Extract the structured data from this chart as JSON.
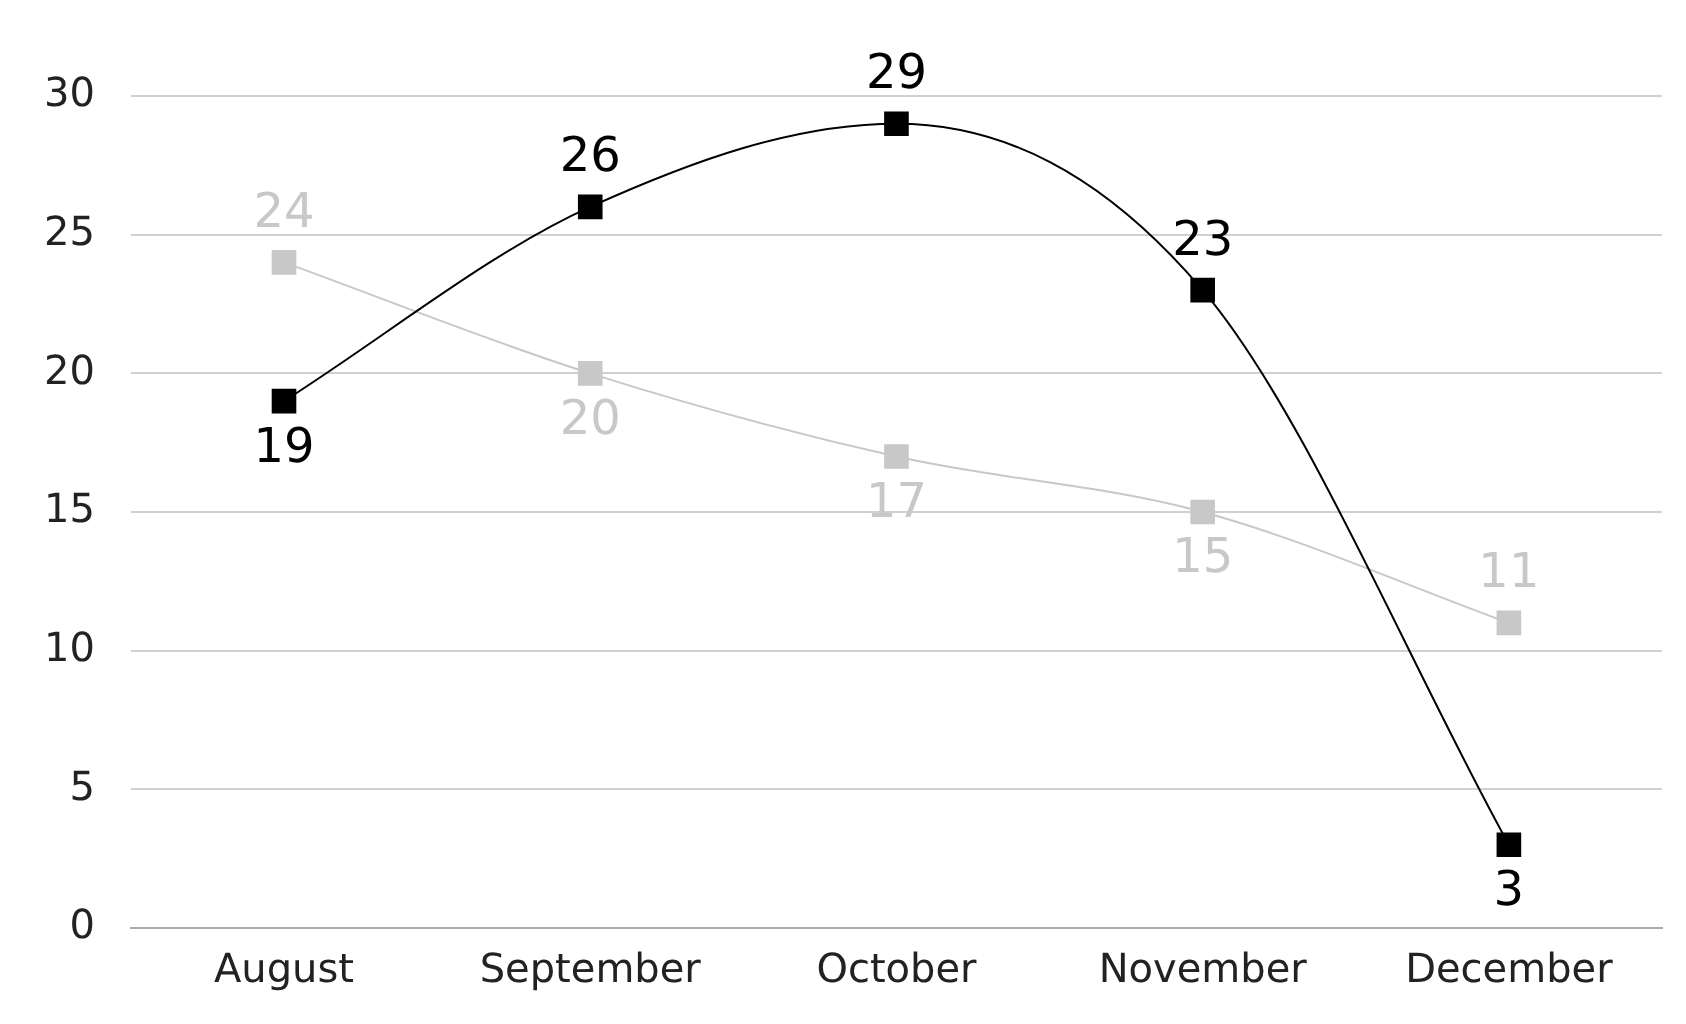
{
  "chart_data": {
    "type": "line",
    "categories": [
      "August",
      "September",
      "October",
      "November",
      "December"
    ],
    "series": [
      {
        "color": "#000000",
        "values": [
          19,
          26,
          29,
          23,
          3
        ]
      },
      {
        "color": "#c8c8c8",
        "values": [
          24,
          20,
          17,
          15,
          11
        ]
      }
    ],
    "ylim": [
      0,
      30
    ],
    "yticks": [
      0,
      5,
      10,
      15,
      20,
      25,
      30
    ],
    "grid": "y",
    "legend": false,
    "marker": "square",
    "line_style": "solid",
    "data_labels": true
  }
}
